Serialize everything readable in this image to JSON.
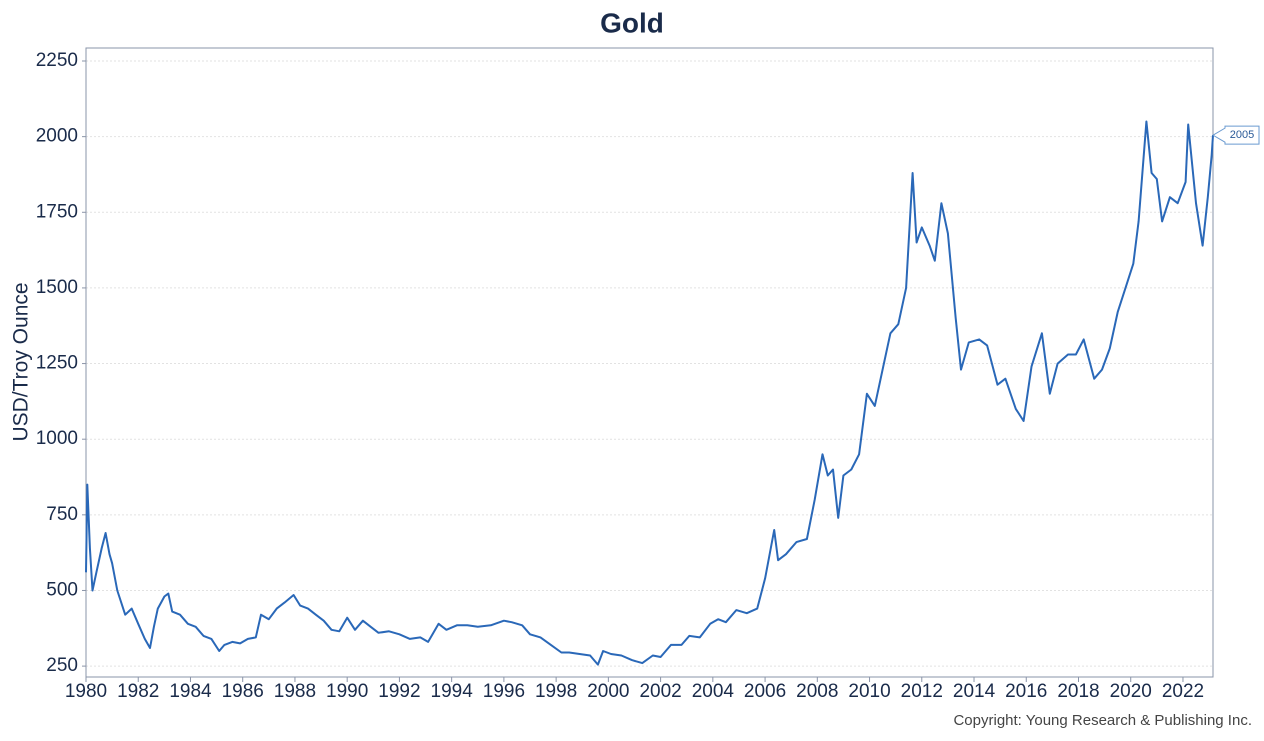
{
  "chart_data": {
    "type": "line",
    "title": "Gold",
    "y_label": "USD/Troy Ounce",
    "source": "Copyright: Young Research & Publishing Inc.",
    "xlim": [
      1980,
      2023.15
    ],
    "ylim": [
      214,
      2293
    ],
    "xticks": [
      1980,
      1982,
      1984,
      1986,
      1988,
      1990,
      1992,
      1994,
      1996,
      1998,
      2000,
      2002,
      2004,
      2006,
      2008,
      2010,
      2012,
      2014,
      2016,
      2018,
      2020,
      2022
    ],
    "yticks": [
      250,
      500,
      750,
      1000,
      1250,
      1500,
      1750,
      2000,
      2250
    ],
    "grid": true,
    "x": [
      1980.0,
      1980.05,
      1980.15,
      1980.25,
      1980.4,
      1980.6,
      1980.75,
      1980.9,
      1981.0,
      1981.2,
      1981.5,
      1981.75,
      1982.0,
      1982.25,
      1982.45,
      1982.6,
      1982.75,
      1983.0,
      1983.15,
      1983.3,
      1983.6,
      1983.9,
      1984.2,
      1984.5,
      1984.8,
      1985.1,
      1985.3,
      1985.6,
      1985.9,
      1986.2,
      1986.5,
      1986.7,
      1987.0,
      1987.3,
      1987.6,
      1987.95,
      1988.2,
      1988.5,
      1988.8,
      1989.1,
      1989.4,
      1989.7,
      1990.0,
      1990.3,
      1990.6,
      1990.9,
      1991.2,
      1991.6,
      1992.0,
      1992.4,
      1992.8,
      1993.1,
      1993.5,
      1993.8,
      1994.2,
      1994.6,
      1995.0,
      1995.5,
      1996.0,
      1996.3,
      1996.7,
      1997.0,
      1997.4,
      1997.8,
      1998.2,
      1998.5,
      1998.9,
      1999.3,
      1999.6,
      1999.8,
      2000.1,
      2000.5,
      2000.9,
      2001.3,
      2001.7,
      2002.0,
      2002.4,
      2002.8,
      2003.1,
      2003.5,
      2003.9,
      2004.2,
      2004.5,
      2004.9,
      2005.3,
      2005.7,
      2006.0,
      2006.35,
      2006.5,
      2006.8,
      2007.2,
      2007.6,
      2007.9,
      2008.2,
      2008.4,
      2008.6,
      2008.8,
      2009.0,
      2009.3,
      2009.6,
      2009.9,
      2010.2,
      2010.5,
      2010.8,
      2011.1,
      2011.4,
      2011.65,
      2011.8,
      2012.0,
      2012.3,
      2012.5,
      2012.75,
      2013.0,
      2013.3,
      2013.5,
      2013.8,
      2014.2,
      2014.5,
      2014.9,
      2015.2,
      2015.6,
      2015.9,
      2016.2,
      2016.6,
      2016.9,
      2017.2,
      2017.6,
      2017.9,
      2018.2,
      2018.6,
      2018.9,
      2019.2,
      2019.5,
      2019.8,
      2020.1,
      2020.3,
      2020.6,
      2020.8,
      2021.0,
      2021.2,
      2021.5,
      2021.8,
      2022.1,
      2022.2,
      2022.5,
      2022.75,
      2022.95,
      2023.1,
      2023.15
    ],
    "series": [
      {
        "name": "Gold",
        "color": "#2a68b8",
        "values": [
          560,
          850,
          640,
          500,
          560,
          640,
          690,
          620,
          590,
          500,
          420,
          440,
          390,
          340,
          310,
          380,
          440,
          480,
          490,
          430,
          420,
          390,
          380,
          350,
          340,
          300,
          320,
          330,
          325,
          340,
          345,
          420,
          405,
          440,
          460,
          485,
          450,
          440,
          420,
          400,
          370,
          365,
          410,
          370,
          400,
          380,
          360,
          365,
          355,
          340,
          345,
          330,
          390,
          370,
          385,
          385,
          380,
          385,
          400,
          395,
          385,
          355,
          345,
          320,
          295,
          295,
          290,
          285,
          255,
          300,
          290,
          285,
          270,
          260,
          285,
          280,
          320,
          320,
          350,
          345,
          390,
          405,
          395,
          435,
          425,
          440,
          540,
          700,
          600,
          620,
          660,
          670,
          800,
          950,
          880,
          900,
          740,
          880,
          900,
          950,
          1150,
          1110,
          1230,
          1350,
          1380,
          1500,
          1880,
          1650,
          1700,
          1640,
          1590,
          1780,
          1680,
          1400,
          1230,
          1320,
          1330,
          1310,
          1180,
          1200,
          1100,
          1060,
          1240,
          1350,
          1150,
          1250,
          1280,
          1280,
          1330,
          1200,
          1230,
          1300,
          1420,
          1500,
          1580,
          1720,
          2050,
          1880,
          1860,
          1720,
          1800,
          1780,
          1850,
          2040,
          1780,
          1640,
          1800,
          1940,
          2005
        ]
      }
    ],
    "annotations": [
      {
        "x": 2023.15,
        "y": 2005,
        "text": "2005"
      }
    ]
  }
}
